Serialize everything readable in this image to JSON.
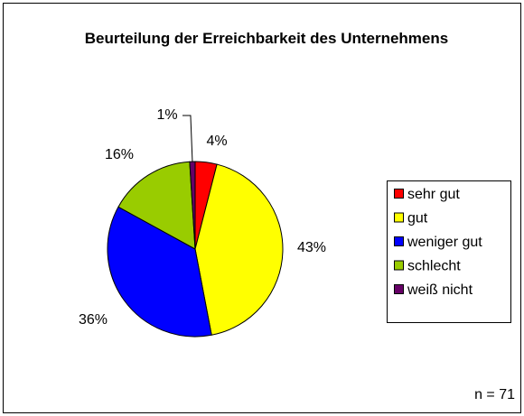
{
  "chart_data": {
    "type": "pie",
    "title": "Beurteilung der Erreichbarkeit des Unternehmens",
    "categories": [
      "sehr gut",
      "gut",
      "weniger gut",
      "schlecht",
      "weiß nicht"
    ],
    "values": [
      4,
      43,
      36,
      16,
      1
    ],
    "value_labels": [
      "4%",
      "43%",
      "36%",
      "16%",
      "1%"
    ],
    "colors": [
      "#ff0000",
      "#ffff00",
      "#0000ff",
      "#99cc00",
      "#660066"
    ],
    "legend": "right",
    "annotation": "n = 71"
  }
}
